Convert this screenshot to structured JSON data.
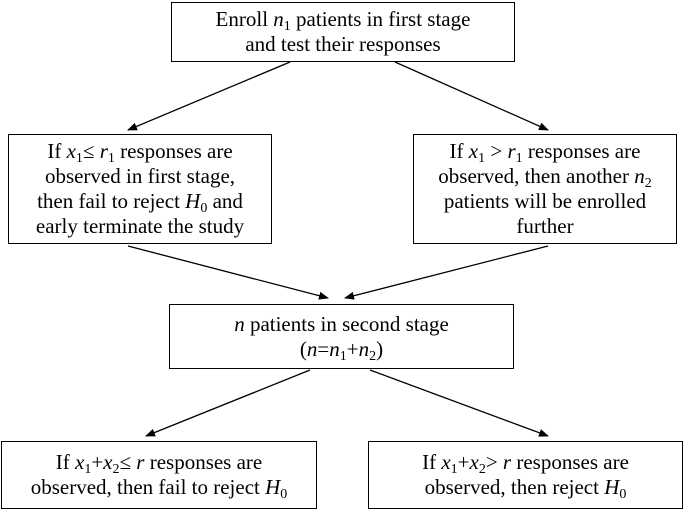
{
  "nodes": {
    "enroll": {
      "line1_a": "Enroll ",
      "line1_var": "n",
      "line1_sub": "1",
      "line1_b": " patients in first stage",
      "line2": "and test their responses"
    },
    "fail_first": {
      "line1_a": "If ",
      "line1_x": "x",
      "line1_xsub": "1",
      "line1_op": "≤ ",
      "line1_r": "r",
      "line1_rsub": "1",
      "line1_b": " responses are",
      "line2": "observed  in first stage,",
      "line3_a": "then fail to reject ",
      "line3_h": "H",
      "line3_hsub": "0",
      "line3_b": "  and",
      "line4": "early terminate the study"
    },
    "continue": {
      "line1_a": "If ",
      "line1_x": "x",
      "line1_xsub": "1",
      "line1_op": " > ",
      "line1_r": "r",
      "line1_rsub": "1",
      "line1_b": "  responses are",
      "line2_a": "observed, then another ",
      "line2_n": "n",
      "line2_nsub": "2",
      "line3": "patients will be enrolled",
      "line4": "further"
    },
    "second_stage": {
      "line1_n": "n",
      "line1_b": " patients in second stage",
      "line2_open": "(",
      "line2_n": "n",
      "line2_eq": "=",
      "line2_n1": "n",
      "line2_n1sub": "1",
      "line2_plus": "+",
      "line2_n2": "n",
      "line2_n2sub": "2",
      "line2_close": ")"
    },
    "fail_final": {
      "line1_a": "If ",
      "line1_x1": "x",
      "line1_x1sub": "1",
      "line1_plus": "+",
      "line1_x2": "x",
      "line1_x2sub": "2",
      "line1_op": "≤ ",
      "line1_r": "r",
      "line1_b": " responses are",
      "line2_a": "observed, then fail to reject ",
      "line2_h": "H",
      "line2_hsub": "0"
    },
    "reject_final": {
      "line1_a": "If ",
      "line1_x1": "x",
      "line1_x1sub": "1",
      "line1_plus": "+",
      "line1_x2": "x",
      "line1_x2sub": "2",
      "line1_op": "> ",
      "line1_r": "r",
      "line1_b": " responses are",
      "line2_a": "observed, then reject ",
      "line2_h": "H",
      "line2_hsub": "0"
    }
  },
  "colors": {
    "stroke": "#000000",
    "background": "#ffffff"
  }
}
